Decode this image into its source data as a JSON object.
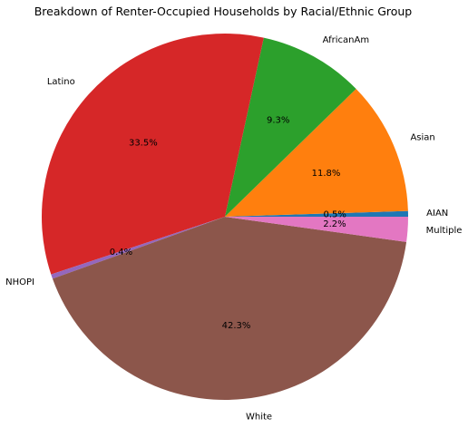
{
  "chart_data": {
    "type": "pie",
    "title": "Breakdown of Renter-Occupied Households by Racial/Ethnic Group",
    "slices": [
      {
        "label": "AIAN",
        "value": 0.5,
        "pct_label": "0.5%",
        "color": "#1f77b4"
      },
      {
        "label": "Asian",
        "value": 11.8,
        "pct_label": "11.8%",
        "color": "#ff7f0e"
      },
      {
        "label": "AfricanAm",
        "value": 9.3,
        "pct_label": "9.3%",
        "color": "#2ca02c"
      },
      {
        "label": "Latino",
        "value": 33.5,
        "pct_label": "33.5%",
        "color": "#d62728"
      },
      {
        "label": "NHOPI",
        "value": 0.4,
        "pct_label": "0.4%",
        "color": "#9467bd"
      },
      {
        "label": "White",
        "value": 42.3,
        "pct_label": "42.3%",
        "color": "#8c564b"
      },
      {
        "label": "Multiple",
        "value": 2.2,
        "pct_label": "2.2%",
        "color": "#e377c2"
      }
    ],
    "start_angle": 0,
    "direction": "counterclockwise",
    "legend": "none"
  }
}
